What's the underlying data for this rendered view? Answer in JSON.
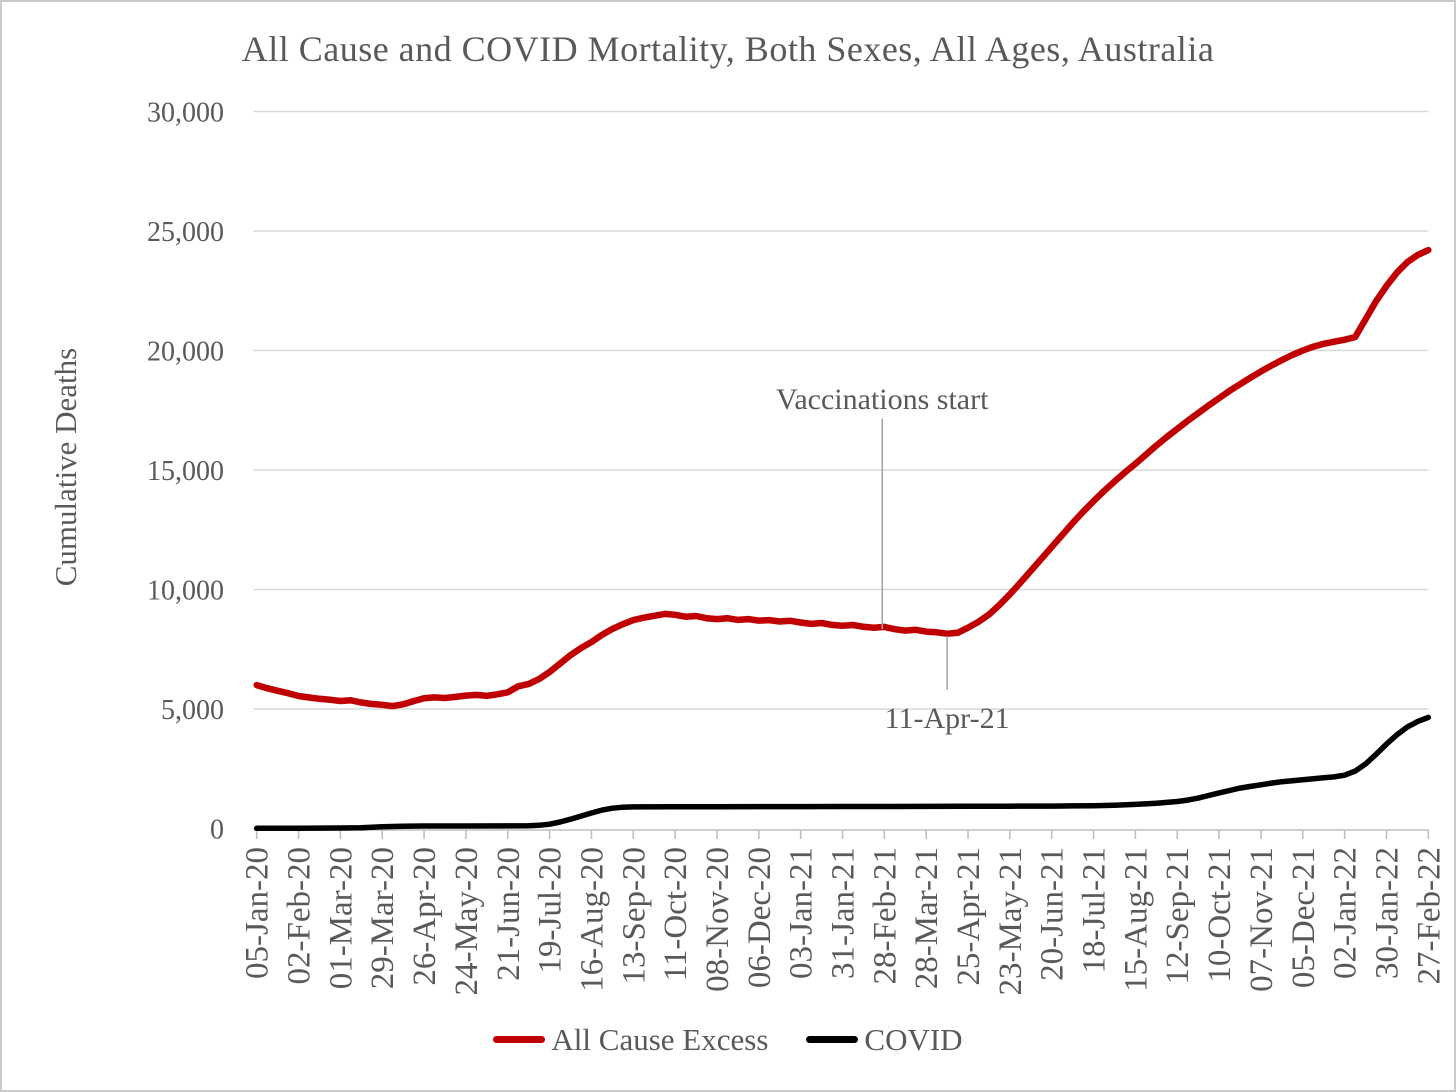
{
  "chart_data": {
    "type": "line",
    "title": "All Cause and COVID Mortality, Both Sexes, All Ages, Australia",
    "ylabel": "Cumulative Deaths",
    "xlabel": "",
    "ylim": [
      0,
      30000
    ],
    "ytick_values": [
      0,
      5000,
      10000,
      15000,
      20000,
      25000,
      30000
    ],
    "ytick_labels": [
      "0",
      "5,000",
      "10,000",
      "15,000",
      "20,000",
      "25,000",
      "30,000"
    ],
    "grid": "horizontal",
    "legend_position": "bottom",
    "x_unit": "weeks since 05-Jan-20 (ticks every 4 weeks)",
    "xtick_weeks": [
      0,
      4,
      8,
      12,
      16,
      20,
      24,
      28,
      32,
      36,
      40,
      44,
      48,
      52,
      56,
      60,
      64,
      68,
      72,
      76,
      80,
      84,
      88,
      92,
      96,
      100,
      104,
      108,
      112
    ],
    "xtick_labels": [
      "05-Jan-20",
      "02-Feb-20",
      "01-Mar-20",
      "29-Mar-20",
      "26-Apr-20",
      "24-May-20",
      "21-Jun-20",
      "19-Jul-20",
      "16-Aug-20",
      "13-Sep-20",
      "11-Oct-20",
      "08-Nov-20",
      "06-Dec-20",
      "03-Jan-21",
      "31-Jan-21",
      "28-Feb-21",
      "28-Mar-21",
      "25-Apr-21",
      "23-May-21",
      "20-Jun-21",
      "18-Jul-21",
      "15-Aug-21",
      "12-Sep-21",
      "10-Oct-21",
      "07-Nov-21",
      "05-Dec-21",
      "02-Jan-22",
      "30-Jan-22",
      "27-Feb-22"
    ],
    "series": [
      {
        "name": "All Cause Excess",
        "color": "#c00000",
        "stroke_width": 6.5,
        "x_start_week": 0,
        "x_step_weeks": 1,
        "values": [
          6000,
          5870,
          5760,
          5660,
          5545,
          5480,
          5425,
          5390,
          5335,
          5365,
          5270,
          5210,
          5175,
          5120,
          5195,
          5330,
          5450,
          5485,
          5460,
          5505,
          5560,
          5590,
          5550,
          5615,
          5700,
          5950,
          6050,
          6250,
          6550,
          6900,
          7250,
          7550,
          7800,
          8100,
          8350,
          8550,
          8720,
          8820,
          8900,
          8980,
          8940,
          8860,
          8890,
          8800,
          8760,
          8800,
          8730,
          8760,
          8700,
          8720,
          8660,
          8690,
          8620,
          8560,
          8600,
          8520,
          8480,
          8515,
          8440,
          8400,
          8435,
          8340,
          8280,
          8315,
          8240,
          8210,
          8150,
          8190,
          8400,
          8650,
          8950,
          9350,
          9800,
          10280,
          10780,
          11280,
          11780,
          12280,
          12780,
          13250,
          13700,
          14120,
          14520,
          14900,
          15260,
          15640,
          16020,
          16380,
          16720,
          17060,
          17380,
          17700,
          18010,
          18310,
          18590,
          18860,
          19120,
          19370,
          19600,
          19810,
          20000,
          20160,
          20280,
          20370,
          20450,
          20560,
          21300,
          22060,
          22700,
          23260,
          23700,
          24000,
          24200
        ]
      },
      {
        "name": "COVID",
        "color": "#000000",
        "stroke_width": 5.5,
        "points": [
          [
            0,
            10
          ],
          [
            4,
            10
          ],
          [
            8,
            20
          ],
          [
            10,
            35
          ],
          [
            12,
            70
          ],
          [
            14,
            95
          ],
          [
            16,
            105
          ],
          [
            20,
            105
          ],
          [
            24,
            110
          ],
          [
            26,
            115
          ],
          [
            27,
            135
          ],
          [
            28,
            180
          ],
          [
            29,
            270
          ],
          [
            30,
            390
          ],
          [
            31,
            520
          ],
          [
            32,
            650
          ],
          [
            33,
            770
          ],
          [
            34,
            850
          ],
          [
            35,
            890
          ],
          [
            36,
            905
          ],
          [
            40,
            910
          ],
          [
            44,
            912
          ],
          [
            48,
            915
          ],
          [
            52,
            918
          ],
          [
            56,
            920
          ],
          [
            60,
            922
          ],
          [
            64,
            925
          ],
          [
            68,
            928
          ],
          [
            72,
            932
          ],
          [
            76,
            938
          ],
          [
            78,
            945
          ],
          [
            80,
            955
          ],
          [
            82,
            975
          ],
          [
            84,
            1010
          ],
          [
            86,
            1060
          ],
          [
            88,
            1130
          ],
          [
            89,
            1190
          ],
          [
            90,
            1270
          ],
          [
            91,
            1380
          ],
          [
            92,
            1490
          ],
          [
            93,
            1590
          ],
          [
            94,
            1690
          ],
          [
            95,
            1760
          ],
          [
            96,
            1830
          ],
          [
            97,
            1900
          ],
          [
            98,
            1960
          ],
          [
            99,
            2000
          ],
          [
            100,
            2040
          ],
          [
            101,
            2080
          ],
          [
            102,
            2120
          ],
          [
            103,
            2160
          ],
          [
            104,
            2230
          ],
          [
            105,
            2400
          ],
          [
            106,
            2700
          ],
          [
            107,
            3100
          ],
          [
            108,
            3530
          ],
          [
            109,
            3920
          ],
          [
            110,
            4250
          ],
          [
            111,
            4480
          ],
          [
            112,
            4650
          ]
        ]
      }
    ],
    "annotations": [
      {
        "text": "Vaccinations start",
        "week": 59.8,
        "line_top_value": 17150,
        "line_bottom_value": 8350,
        "label_value": 17550,
        "label_side": "above"
      },
      {
        "text": "11-Apr-21",
        "week": 66,
        "line_top_value": 8050,
        "line_bottom_value": 5800,
        "label_value": 4200,
        "label_side": "below"
      }
    ],
    "colors": {
      "grid": "#d9d9d9",
      "axis": "#bfbfbf",
      "text": "#595959",
      "annotation_line": "#a6a6a6"
    }
  }
}
